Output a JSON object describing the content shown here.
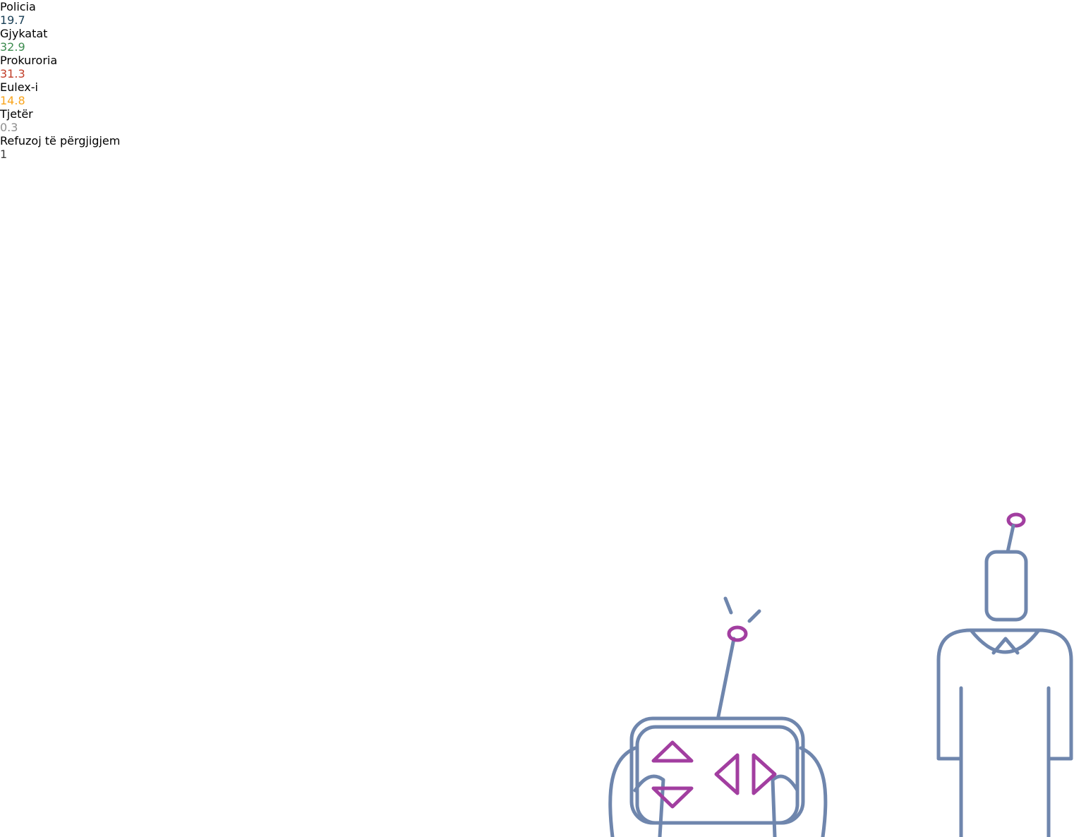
{
  "chart_data": {
    "type": "bar",
    "orientation": "horizontal",
    "categories": [
      "Policia",
      "Gjykatat",
      "Prokuroria",
      "Eulex-i",
      "Tjetër",
      "Refuzoj të përgjigjem"
    ],
    "values": [
      19.7,
      32.9,
      31.3,
      14.8,
      0.3,
      1
    ],
    "colors": [
      "#183e55",
      "#3d8c4f",
      "#c13d28",
      "#f9a51d",
      "#8f8f8f",
      "#3d3d3d"
    ]
  }
}
